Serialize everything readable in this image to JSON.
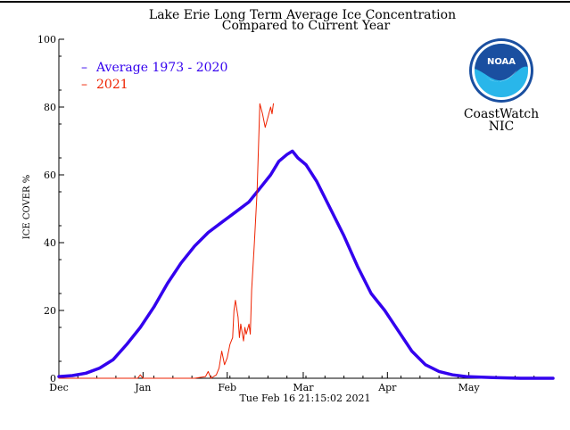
{
  "chart_data": {
    "type": "line",
    "title": "Lake Erie Long Term Average Ice Concentration",
    "subtitle": "Compared to Current Year",
    "ylabel": "ICE COVER %",
    "xlabel": "Tue Feb 16 21:15:02 2021",
    "ylim": [
      0,
      100
    ],
    "yticks": [
      0,
      20,
      40,
      60,
      80,
      100
    ],
    "x_unit": "days since Dec 1",
    "xlim": [
      0,
      182
    ],
    "month_ticks": [
      {
        "label": "Dec",
        "day": 0
      },
      {
        "label": "Jan",
        "day": 31
      },
      {
        "label": "Feb",
        "day": 62
      },
      {
        "label": "Mar",
        "day": 90
      },
      {
        "label": "Apr",
        "day": 121
      },
      {
        "label": "May",
        "day": 151
      }
    ],
    "series": [
      {
        "name": "Average 1973 - 2020",
        "legend_label": "Average 1973 - 2020",
        "color": "#3300ee",
        "points": [
          [
            0,
            0.5
          ],
          [
            5,
            0.8
          ],
          [
            10,
            1.5
          ],
          [
            15,
            3
          ],
          [
            20,
            5.5
          ],
          [
            25,
            10
          ],
          [
            30,
            15
          ],
          [
            35,
            21
          ],
          [
            40,
            28
          ],
          [
            45,
            34
          ],
          [
            50,
            39
          ],
          [
            55,
            43
          ],
          [
            60,
            46
          ],
          [
            65,
            49
          ],
          [
            70,
            52
          ],
          [
            74,
            56
          ],
          [
            78,
            60
          ],
          [
            81,
            64
          ],
          [
            84,
            66
          ],
          [
            86,
            67
          ],
          [
            88,
            65
          ],
          [
            91,
            63
          ],
          [
            95,
            58
          ],
          [
            100,
            50
          ],
          [
            105,
            42
          ],
          [
            110,
            33
          ],
          [
            115,
            25
          ],
          [
            120,
            20
          ],
          [
            125,
            14
          ],
          [
            130,
            8
          ],
          [
            135,
            4
          ],
          [
            140,
            2
          ],
          [
            145,
            1
          ],
          [
            150,
            0.5
          ],
          [
            160,
            0.2
          ],
          [
            170,
            0
          ],
          [
            182,
            0
          ]
        ]
      },
      {
        "name": "2021",
        "legend_label": "2021",
        "color": "#ee2200",
        "points": [
          [
            0,
            0
          ],
          [
            20,
            0
          ],
          [
            29,
            0
          ],
          [
            30,
            1
          ],
          [
            31,
            0
          ],
          [
            50,
            0
          ],
          [
            54,
            0.5
          ],
          [
            55,
            2
          ],
          [
            56,
            0
          ],
          [
            58,
            1
          ],
          [
            59,
            3
          ],
          [
            60,
            8
          ],
          [
            61,
            4
          ],
          [
            62,
            6
          ],
          [
            63,
            10
          ],
          [
            64,
            12
          ],
          [
            64.5,
            20
          ],
          [
            65,
            23
          ],
          [
            66,
            18
          ],
          [
            66.5,
            12
          ],
          [
            67,
            16
          ],
          [
            68,
            11
          ],
          [
            68.5,
            15
          ],
          [
            69,
            13
          ],
          [
            70,
            16
          ],
          [
            70.5,
            13
          ],
          [
            71,
            26
          ],
          [
            72,
            40
          ],
          [
            73,
            55
          ],
          [
            74,
            81
          ],
          [
            75,
            78
          ],
          [
            76,
            74
          ],
          [
            77,
            77
          ],
          [
            78,
            80
          ],
          [
            78.5,
            78
          ],
          [
            79,
            81
          ]
        ]
      }
    ]
  },
  "logo": {
    "badge_text": "NOAA",
    "caption_line1": "CoastWatch",
    "caption_line2": "NIC"
  },
  "colors": {
    "axis": "#000000",
    "logo_blue": "#1a4fa0",
    "logo_light": "#29b6ea"
  }
}
